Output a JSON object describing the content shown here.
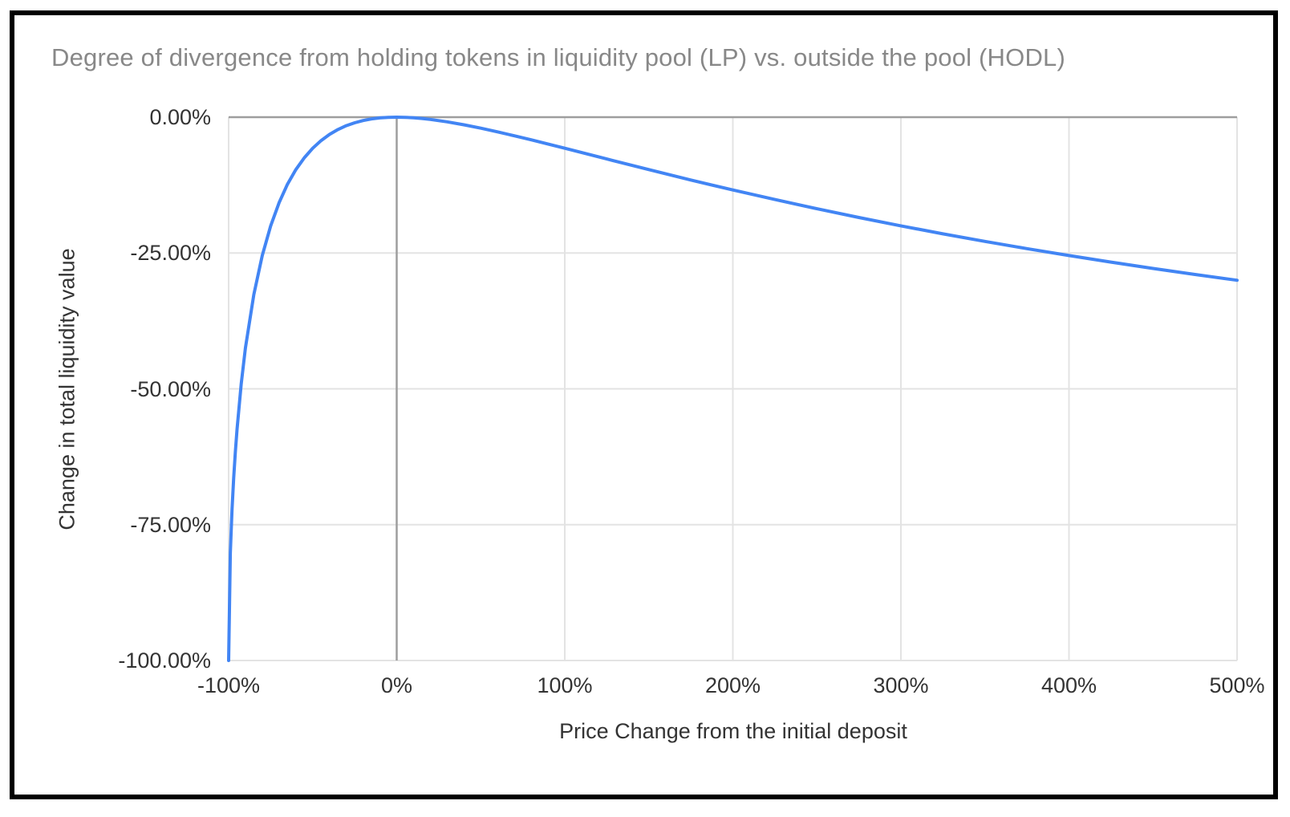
{
  "page": {
    "background": "#ffffff",
    "frame_border_color": "#000000"
  },
  "chart_data": {
    "type": "line",
    "title": "Degree of divergence from holding tokens in liquidity pool (LP) vs. outside the pool (HODL)",
    "xlabel": "Price Change from the initial deposit",
    "ylabel": "Change in total liquidity value",
    "xlim": [
      -100,
      500
    ],
    "ylim": [
      -100,
      0
    ],
    "grid": true,
    "legend": "none",
    "zero_lines": {
      "x": 0,
      "y": 0
    },
    "colors": {
      "line": "#4285f4",
      "grid": "#e3e3e3",
      "zero_line": "#9e9e9e",
      "tick_label": "#333333",
      "axis_title": "#333333",
      "title": "#888888"
    },
    "x_ticks": [
      {
        "value": -100,
        "label": "-100%"
      },
      {
        "value": 0,
        "label": "0%"
      },
      {
        "value": 100,
        "label": "100%"
      },
      {
        "value": 200,
        "label": "200%"
      },
      {
        "value": 300,
        "label": "300%"
      },
      {
        "value": 400,
        "label": "400%"
      },
      {
        "value": 500,
        "label": "500%"
      }
    ],
    "y_ticks": [
      {
        "value": 0,
        "label": "0.00%"
      },
      {
        "value": -25,
        "label": "-25.00%"
      },
      {
        "value": -50,
        "label": "-50.00%"
      },
      {
        "value": -75,
        "label": "-75.00%"
      },
      {
        "value": -100,
        "label": "-100.00%"
      }
    ],
    "series": [
      {
        "color": "#4285f4",
        "points": [
          [
            -100,
            -100
          ],
          [
            -99,
            -80.2
          ],
          [
            -98,
            -72.27
          ],
          [
            -97,
            -66.37
          ],
          [
            -96,
            -61.54
          ],
          [
            -95,
            -57.41
          ],
          [
            -92.5,
            -49.05
          ],
          [
            -90,
            -42.5
          ],
          [
            -85,
            -32.64
          ],
          [
            -80,
            -25.46
          ],
          [
            -75,
            -20.0
          ],
          [
            -70,
            -15.74
          ],
          [
            -65,
            -12.35
          ],
          [
            -60,
            -9.65
          ],
          [
            -55,
            -7.47
          ],
          [
            -50,
            -5.72
          ],
          [
            -45,
            -4.31
          ],
          [
            -40,
            -3.18
          ],
          [
            -35,
            -2.28
          ],
          [
            -30,
            -1.57
          ],
          [
            -25,
            -1.03
          ],
          [
            -20,
            -0.62
          ],
          [
            -15,
            -0.33
          ],
          [
            -10,
            -0.14
          ],
          [
            -5,
            -0.03
          ],
          [
            0,
            0
          ],
          [
            5,
            -0.03
          ],
          [
            10,
            -0.11
          ],
          [
            15,
            -0.24
          ],
          [
            20,
            -0.41
          ],
          [
            30,
            -0.85
          ],
          [
            40,
            -1.4
          ],
          [
            50,
            -2.02
          ],
          [
            60,
            -2.7
          ],
          [
            70,
            -3.42
          ],
          [
            80,
            -4.17
          ],
          [
            90,
            -4.94
          ],
          [
            100,
            -5.72
          ],
          [
            125,
            -7.69
          ],
          [
            150,
            -9.65
          ],
          [
            175,
            -11.56
          ],
          [
            200,
            -13.4
          ],
          [
            225,
            -15.16
          ],
          [
            250,
            -16.85
          ],
          [
            275,
            -18.46
          ],
          [
            300,
            -20.0
          ],
          [
            325,
            -21.47
          ],
          [
            350,
            -22.86
          ],
          [
            375,
            -24.19
          ],
          [
            400,
            -25.46
          ],
          [
            425,
            -26.68
          ],
          [
            450,
            -27.84
          ],
          [
            475,
            -28.95
          ],
          [
            500,
            -30.01
          ]
        ]
      }
    ]
  }
}
